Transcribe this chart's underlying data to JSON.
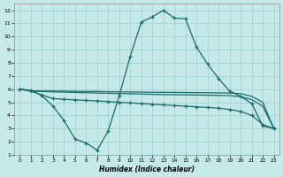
{
  "xlabel": "Humidex (Indice chaleur)",
  "bg_color": "#c5e8e8",
  "grid_color": "#9ecece",
  "line_color": "#1a6b6b",
  "xlim": [
    -0.5,
    23.5
  ],
  "ylim": [
    1,
    12.5
  ],
  "xticks": [
    0,
    1,
    2,
    3,
    4,
    5,
    6,
    7,
    8,
    9,
    10,
    11,
    12,
    13,
    14,
    15,
    16,
    17,
    18,
    19,
    20,
    21,
    22,
    23
  ],
  "yticks": [
    1,
    2,
    3,
    4,
    5,
    6,
    7,
    8,
    9,
    10,
    11,
    12
  ],
  "curve_x": [
    0,
    1,
    2,
    3,
    4,
    5,
    6,
    7,
    8,
    9,
    10,
    11,
    12,
    13,
    14,
    15,
    16,
    17,
    18,
    19,
    20,
    21,
    22,
    23
  ],
  "curve_y": [
    6.0,
    5.9,
    5.5,
    4.7,
    3.6,
    2.2,
    1.9,
    1.35,
    2.8,
    5.5,
    8.5,
    11.1,
    11.5,
    12.0,
    11.4,
    11.35,
    9.2,
    7.9,
    6.8,
    5.85,
    5.45,
    4.9,
    3.2,
    3.0
  ],
  "flat1_x": [
    0,
    1,
    2,
    3,
    4,
    5,
    6,
    7,
    8,
    9,
    10,
    11,
    12,
    13,
    14,
    15,
    16,
    17,
    18,
    19,
    20,
    21,
    22,
    23
  ],
  "flat1_y": [
    6.0,
    5.85,
    5.85,
    5.85,
    5.85,
    5.83,
    5.82,
    5.82,
    5.8,
    5.79,
    5.78,
    5.77,
    5.76,
    5.75,
    5.75,
    5.74,
    5.73,
    5.72,
    5.71,
    5.7,
    5.65,
    5.45,
    5.0,
    3.0
  ],
  "flat2_x": [
    0,
    1,
    2,
    3,
    4,
    5,
    6,
    7,
    8,
    9,
    10,
    11,
    12,
    13,
    14,
    15,
    16,
    17,
    18,
    19,
    20,
    21,
    22,
    23
  ],
  "flat2_y": [
    6.0,
    5.85,
    5.55,
    5.28,
    5.22,
    5.18,
    5.14,
    5.1,
    5.05,
    5.0,
    4.95,
    4.9,
    4.85,
    4.8,
    4.75,
    4.7,
    4.65,
    4.6,
    4.55,
    4.45,
    4.3,
    4.0,
    3.3,
    3.0
  ],
  "flat3_x": [
    0,
    1,
    2,
    3,
    4,
    5,
    6,
    7,
    8,
    9,
    10,
    11,
    12,
    13,
    14,
    15,
    16,
    17,
    18,
    19,
    20,
    21,
    22,
    23
  ],
  "flat3_y": [
    6.0,
    5.85,
    5.82,
    5.79,
    5.77,
    5.74,
    5.72,
    5.7,
    5.68,
    5.66,
    5.64,
    5.62,
    5.6,
    5.58,
    5.57,
    5.56,
    5.55,
    5.53,
    5.52,
    5.5,
    5.42,
    5.2,
    4.7,
    3.0
  ]
}
